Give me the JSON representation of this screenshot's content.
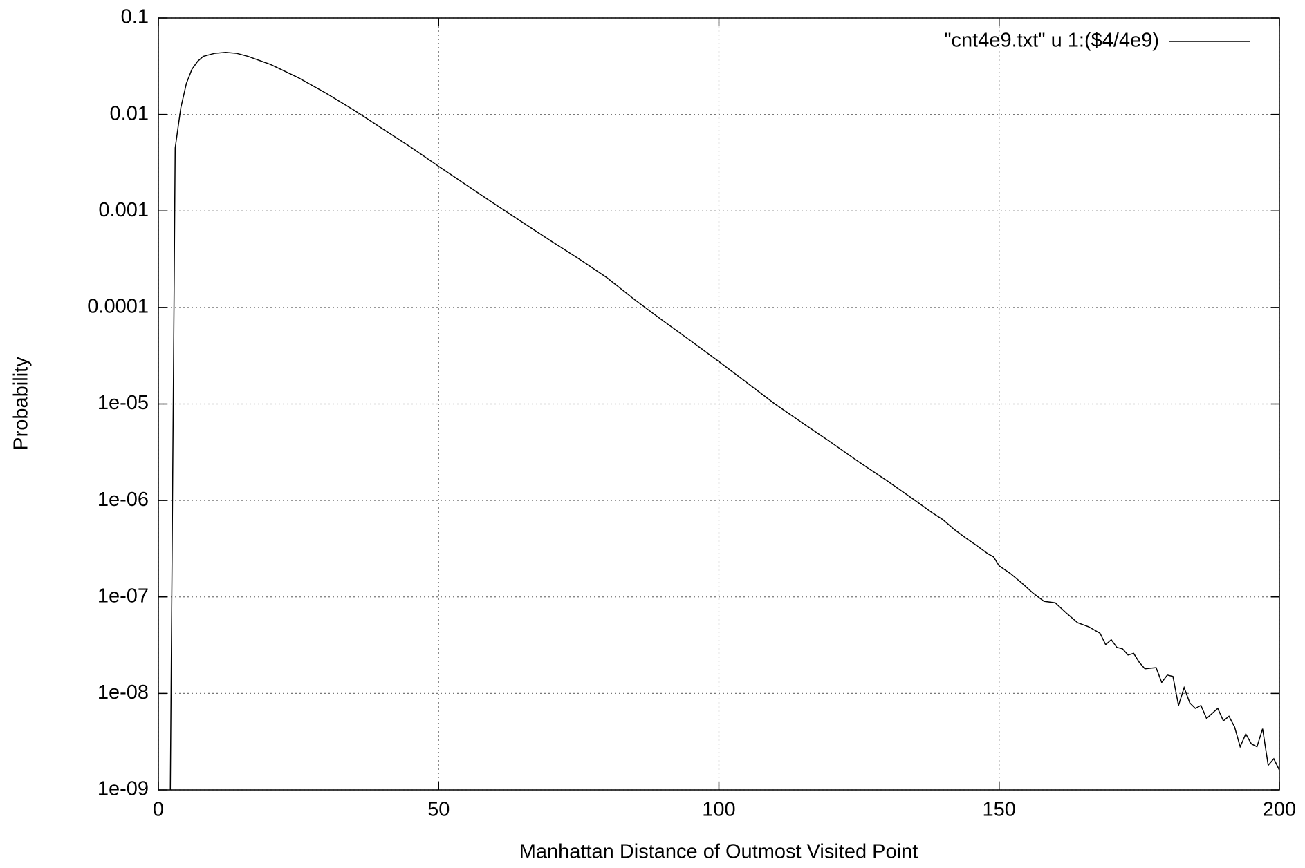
{
  "chart_data": {
    "type": "line",
    "xlabel": "Manhattan Distance of Outmost Visited Point",
    "ylabel": "Probability",
    "x": [
      2,
      3,
      4,
      5,
      6,
      7,
      8,
      10,
      12,
      14,
      16,
      20,
      25,
      30,
      35,
      40,
      45,
      50,
      55,
      60,
      65,
      70,
      75,
      80,
      85,
      90,
      95,
      100,
      105,
      110,
      115,
      120,
      125,
      130,
      135,
      138,
      140,
      142,
      144,
      146,
      148,
      149,
      150,
      152,
      154,
      156,
      158,
      160,
      162,
      164,
      166,
      168,
      169,
      170,
      171,
      172,
      173,
      174,
      175,
      176,
      178,
      179,
      180,
      181,
      182,
      183,
      184,
      185,
      186,
      187,
      188,
      189,
      190,
      191,
      192,
      193,
      194,
      195,
      196,
      197,
      198,
      199,
      200
    ],
    "series": [
      {
        "name": "\"cnt4e9.txt\" u 1:($4/4e9)",
        "color": "#000000",
        "values": [
          1e-10,
          0.0045,
          0.0117,
          0.021,
          0.0295,
          0.0355,
          0.04,
          0.043,
          0.044,
          0.043,
          0.04,
          0.033,
          0.024,
          0.0165,
          0.011,
          0.0071,
          0.0046,
          0.0029,
          0.00185,
          0.00118,
          0.00076,
          0.00049,
          0.00032,
          0.000204,
          0.00012,
          7.3e-05,
          4.5e-05,
          2.75e-05,
          1.66e-05,
          1e-05,
          6.3e-06,
          4e-06,
          2.5e-06,
          1.6e-06,
          1e-06,
          7.5e-07,
          6.3e-07,
          5e-07,
          4.1e-07,
          3.4e-07,
          2.8e-07,
          2.6e-07,
          2.1e-07,
          1.75e-07,
          1.4e-07,
          1.1e-07,
          9e-08,
          8.7e-08,
          6.8e-08,
          5.4e-08,
          4.9e-08,
          4.2e-08,
          3.2e-08,
          3.6e-08,
          3e-08,
          2.9e-08,
          2.5e-08,
          2.6e-08,
          2.1e-08,
          1.8e-08,
          1.85e-08,
          1.3e-08,
          1.55e-08,
          1.5e-08,
          7.5e-09,
          1.15e-08,
          8e-09,
          7e-09,
          7.5e-09,
          5.5e-09,
          6.2e-09,
          7e-09,
          5.2e-09,
          5.8e-09,
          4.5e-09,
          2.8e-09,
          3.8e-09,
          3e-09,
          2.8e-09,
          4.3e-09,
          1.8e-09,
          2.1e-09,
          1.6e-09
        ]
      }
    ],
    "xlim": [
      0,
      200
    ],
    "xticks": [
      0,
      50,
      100,
      150,
      200
    ],
    "ylim": [
      1e-09,
      0.1
    ],
    "yticks": [
      0.1,
      0.01,
      0.001,
      0.0001,
      {
        "value": 1e-05,
        "label": "1e-05"
      },
      {
        "value": 1e-06,
        "label": "1e-06"
      },
      {
        "value": 1e-07,
        "label": "1e-07"
      },
      {
        "value": 1e-08,
        "label": "1e-08"
      },
      {
        "value": 1e-09,
        "label": "1e-09"
      }
    ],
    "ylog": true,
    "grid": true,
    "legend": "top-right"
  }
}
